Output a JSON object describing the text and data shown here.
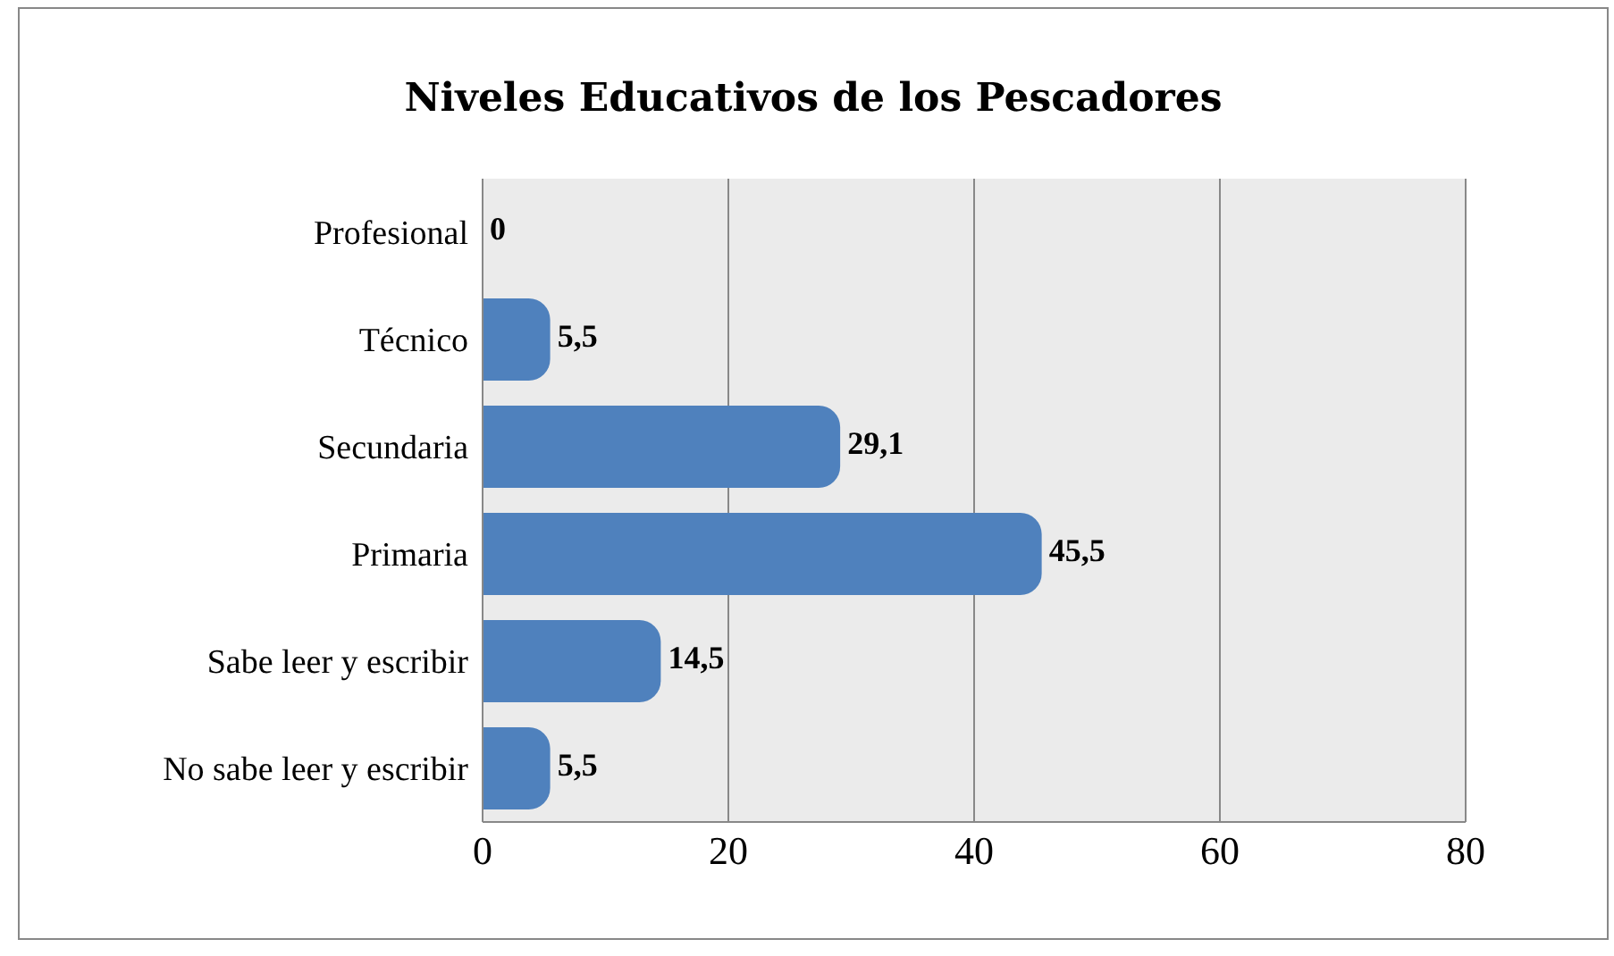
{
  "chart_data": {
    "type": "bar",
    "orientation": "horizontal",
    "title": "Niveles Educativos de los Pescadores",
    "categories": [
      "Profesional",
      "Técnico",
      "Secundaria",
      "Primaria",
      "Sabe leer y escribir",
      "No sabe leer y escribir"
    ],
    "values": [
      0,
      5.5,
      29.1,
      45.5,
      14.5,
      5.5
    ],
    "value_labels": [
      "0",
      "5,5",
      "29,1",
      "45,5",
      "14,5",
      "5,5"
    ],
    "color": "#4f81bd",
    "xlim": [
      0,
      80
    ],
    "xticks": [
      0,
      20,
      40,
      60,
      80
    ],
    "grid": "x"
  }
}
